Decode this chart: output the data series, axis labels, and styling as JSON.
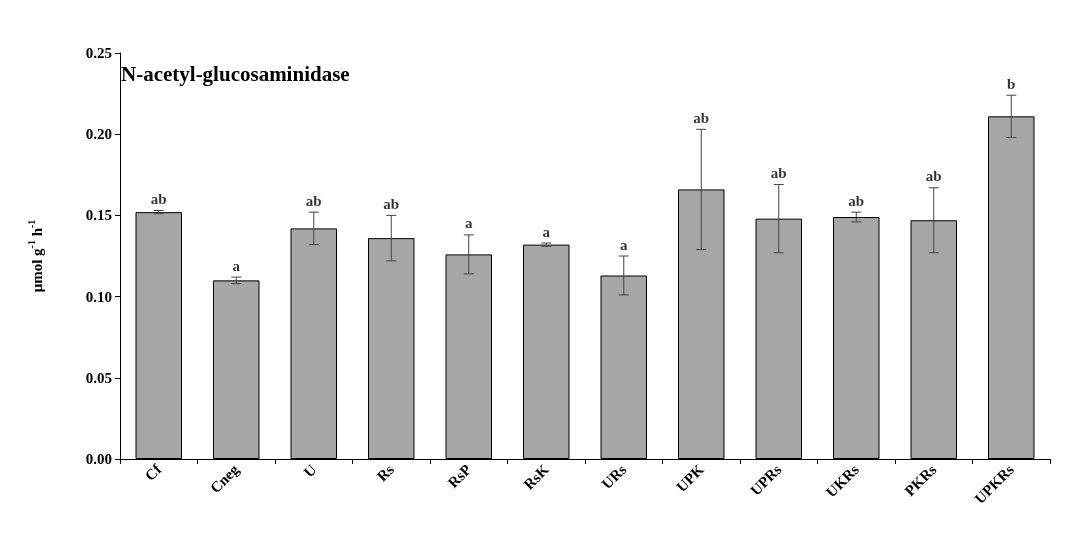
{
  "chart_data": {
    "type": "bar",
    "title": "N-acetyl-glucosaminidase",
    "ylabel": "μmol g$^{-1}$ h$^{-1}$",
    "categories": [
      "Cf",
      "Cneg",
      "U",
      "Rs",
      "RsP",
      "RsK",
      "URs",
      "UPK",
      "UPRs",
      "UKRs",
      "PKRs",
      "UPKRs"
    ],
    "values": [
      0.152,
      0.11,
      0.142,
      0.136,
      0.126,
      0.132,
      0.113,
      0.166,
      0.148,
      0.149,
      0.147,
      0.211
    ],
    "errors": [
      0.001,
      0.002,
      0.01,
      0.014,
      0.012,
      0.001,
      0.012,
      0.037,
      0.021,
      0.003,
      0.02,
      0.013
    ],
    "color": "#a6a6a6",
    "ylim": [
      0,
      0.25
    ],
    "yticks": [
      {
        "value": 0,
        "label": "0.00"
      },
      {
        "value": 0.05,
        "label": "0.05"
      },
      {
        "value": 0.1,
        "label": "0.10"
      },
      {
        "value": 0.15,
        "label": "0.15"
      },
      {
        "value": 0.2,
        "label": "0.20"
      },
      {
        "value": 0.25,
        "label": "0.25"
      }
    ],
    "grid": false,
    "annotations": [
      {
        "text": "ab",
        "x": "Cf",
        "y": 0.153
      },
      {
        "text": "a",
        "x": "Cneg",
        "y": 0.112
      },
      {
        "text": "ab",
        "x": "U",
        "y": 0.152
      },
      {
        "text": "ab",
        "x": "Rs",
        "y": 0.15
      },
      {
        "text": "a",
        "x": "RsP",
        "y": 0.138
      },
      {
        "text": "a",
        "x": "RsK",
        "y": 0.133
      },
      {
        "text": "a",
        "x": "URs",
        "y": 0.125
      },
      {
        "text": "ab",
        "x": "UPK",
        "y": 0.203
      },
      {
        "text": "ab",
        "x": "UPRs",
        "y": 0.169
      },
      {
        "text": "ab",
        "x": "UKRs",
        "y": 0.152
      },
      {
        "text": "ab",
        "x": "PKRs",
        "y": 0.167
      },
      {
        "text": "b",
        "x": "UPKRs",
        "y": 0.224
      }
    ]
  }
}
